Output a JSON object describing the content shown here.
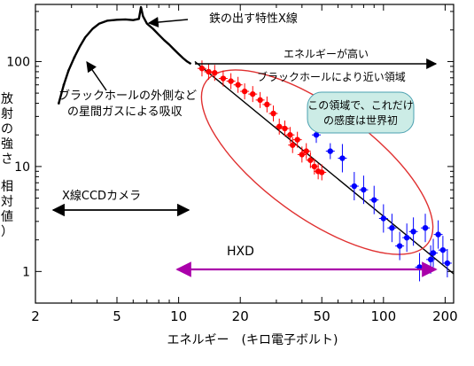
{
  "chart_data": {
    "type": "scatter",
    "x_scale": "log",
    "y_scale": "log",
    "xlim": [
      2,
      220
    ],
    "ylim": [
      0.5,
      350
    ],
    "x_ticks": [
      "2",
      "5",
      "10",
      "20",
      "50",
      "100",
      "200"
    ],
    "y_ticks": [
      "100",
      "10",
      "1"
    ],
    "xlabel": "エネルギー　(キロ電子ボルト)",
    "ylabel_chars": [
      "放",
      "射",
      "の",
      "強",
      "さ",
      "",
      "相",
      "対",
      "値",
      "）"
    ],
    "series": [
      {
        "color": "#000000",
        "style": "line",
        "points": [
          [
            2.6,
            40
          ],
          [
            2.75,
            60
          ],
          [
            2.9,
            82
          ],
          [
            3.1,
            110
          ],
          [
            3.3,
            140
          ],
          [
            3.5,
            170
          ],
          [
            3.8,
            205
          ],
          [
            4.1,
            230
          ],
          [
            4.5,
            245
          ],
          [
            5.0,
            250
          ],
          [
            5.5,
            252
          ],
          [
            6.0,
            248
          ],
          [
            6.4,
            255
          ],
          [
            6.55,
            330
          ],
          [
            6.7,
            270
          ],
          [
            7.0,
            230
          ],
          [
            7.5,
            205
          ],
          [
            8.0,
            180
          ],
          [
            8.5,
            160
          ],
          [
            9.0,
            145
          ],
          [
            9.5,
            130
          ],
          [
            10.0,
            118
          ],
          [
            10.5,
            108
          ],
          [
            11.0,
            100
          ],
          [
            11.5,
            95
          ]
        ]
      },
      {
        "color": "#ff0000",
        "style": "points",
        "points": [
          [
            13,
            86
          ],
          [
            14,
            80
          ],
          [
            15,
            78
          ],
          [
            16.5,
            69
          ],
          [
            18,
            65
          ],
          [
            19.5,
            60
          ],
          [
            21,
            52
          ],
          [
            23,
            49
          ],
          [
            25,
            43
          ],
          [
            27,
            39
          ],
          [
            29,
            32
          ],
          [
            31,
            24
          ],
          [
            33,
            23
          ],
          [
            35,
            20
          ],
          [
            36,
            16
          ],
          [
            38,
            18
          ],
          [
            40,
            13
          ],
          [
            42,
            14
          ],
          [
            44,
            11.5
          ],
          [
            46,
            10
          ],
          [
            48,
            9
          ],
          [
            50,
            8.8
          ]
        ]
      },
      {
        "color": "#0000ff",
        "style": "points",
        "points": [
          [
            47,
            20
          ],
          [
            55,
            14
          ],
          [
            63,
            12
          ],
          [
            72,
            6.5
          ],
          [
            80,
            6
          ],
          [
            90,
            4.8
          ],
          [
            100,
            3.2
          ],
          [
            110,
            2.6
          ],
          [
            120,
            1.75
          ],
          [
            130,
            2.1
          ],
          [
            140,
            2.4
          ],
          [
            150,
            1.1
          ],
          [
            160,
            2.6
          ],
          [
            170,
            1.3
          ],
          [
            175,
            1.5
          ],
          [
            185,
            2.25
          ],
          [
            195,
            1.6
          ],
          [
            205,
            1.2
          ]
        ]
      }
    ],
    "fit_line": [
      [
        12,
        100
      ],
      [
        220,
        0.95
      ]
    ],
    "annotations": {
      "iron_line": "鉄の出す特性X線",
      "absorption_1": "ブラックホールの外側など",
      "absorption_2": "の星間ガスによる吸収",
      "energy_high": "エネルギーが高い",
      "near_region": "ブラックホールにより近い領域",
      "bubble_1": "この領域で、これだけ",
      "bubble_2": "の感度は世界初",
      "ccd": "X線CCDカメラ",
      "hxd": "HXD"
    },
    "colors": {
      "ellipse": "#e03030",
      "hxd_arrow": "#aa00aa",
      "bubble_fill": "#ccece6",
      "bubble_stroke": "#4aa0b0",
      "frame": "#000000"
    }
  }
}
